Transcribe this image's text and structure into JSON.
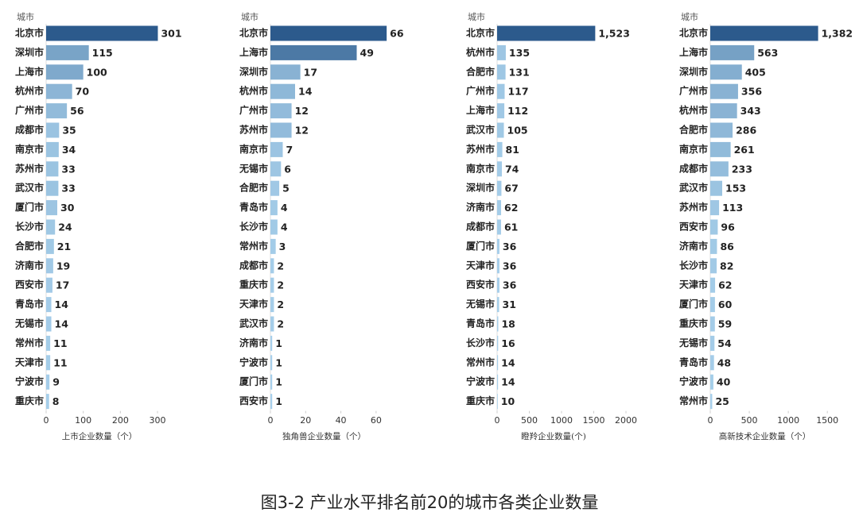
{
  "caption": "图3-2 产业水平排名前20的城市各类企业数量",
  "chart_data": [
    {
      "type": "hbar",
      "y_label": "城市",
      "x_label": "上市企业数量（个）",
      "categories": [
        "北京市",
        "深圳市",
        "上海市",
        "杭州市",
        "广州市",
        "成都市",
        "南京市",
        "苏州市",
        "武汉市",
        "厦门市",
        "长沙市",
        "合肥市",
        "济南市",
        "西安市",
        "青岛市",
        "无锡市",
        "常州市",
        "天津市",
        "宁波市",
        "重庆市"
      ],
      "values": [
        301,
        115,
        100,
        70,
        56,
        35,
        34,
        33,
        33,
        30,
        24,
        21,
        19,
        17,
        14,
        14,
        11,
        11,
        9,
        8
      ],
      "xlim": [
        0,
        330
      ],
      "xticks": [
        0,
        100,
        200,
        300
      ],
      "color_range": [
        "#a9d1ec",
        "#2c5a8c"
      ]
    },
    {
      "type": "hbar",
      "y_label": "城市",
      "x_label": "独角兽企业数量（个）",
      "categories": [
        "北京市",
        "上海市",
        "深圳市",
        "杭州市",
        "广州市",
        "苏州市",
        "南京市",
        "无锡市",
        "合肥市",
        "青岛市",
        "长沙市",
        "常州市",
        "成都市",
        "重庆市",
        "天津市",
        "武汉市",
        "济南市",
        "宁波市",
        "厦门市",
        "西安市"
      ],
      "values": [
        66,
        49,
        17,
        14,
        12,
        12,
        7,
        6,
        5,
        4,
        4,
        3,
        2,
        2,
        2,
        2,
        1,
        1,
        1,
        1
      ],
      "xlim": [
        0,
        70
      ],
      "xticks": [
        0,
        20,
        40,
        60
      ],
      "color_range": [
        "#a9d1ec",
        "#2c5a8c"
      ]
    },
    {
      "type": "hbar",
      "y_label": "城市",
      "x_label": "瞪羚企业数量(个)",
      "categories": [
        "北京市",
        "杭州市",
        "合肥市",
        "广州市",
        "上海市",
        "武汉市",
        "苏州市",
        "南京市",
        "深圳市",
        "济南市",
        "成都市",
        "厦门市",
        "天津市",
        "西安市",
        "无锡市",
        "青岛市",
        "长沙市",
        "常州市",
        "宁波市",
        "重庆市"
      ],
      "values": [
        1523,
        135,
        131,
        117,
        112,
        105,
        81,
        74,
        67,
        62,
        61,
        36,
        36,
        36,
        31,
        18,
        16,
        14,
        14,
        10
      ],
      "value_labels": [
        "1,523",
        "135",
        "131",
        "117",
        "112",
        "105",
        "81",
        "74",
        "67",
        "62",
        "61",
        "36",
        "36",
        "36",
        "31",
        "18",
        "16",
        "14",
        "14",
        "10"
      ],
      "xlim": [
        0,
        2000
      ],
      "xticks": [
        0,
        500,
        1000,
        1500,
        2000
      ],
      "color_range": [
        "#a9d1ec",
        "#2c5a8c"
      ]
    },
    {
      "type": "hbar",
      "y_label": "城市",
      "x_label": "高新技术企业数量（个）",
      "categories": [
        "北京市",
        "上海市",
        "深圳市",
        "广州市",
        "杭州市",
        "合肥市",
        "南京市",
        "成都市",
        "武汉市",
        "苏州市",
        "西安市",
        "济南市",
        "长沙市",
        "天津市",
        "厦门市",
        "重庆市",
        "无锡市",
        "青岛市",
        "宁波市",
        "常州市"
      ],
      "values": [
        1382,
        563,
        405,
        356,
        343,
        286,
        261,
        233,
        153,
        113,
        96,
        86,
        82,
        62,
        60,
        59,
        54,
        48,
        40,
        25
      ],
      "value_labels": [
        "1,382",
        "563",
        "405",
        "356",
        "343",
        "286",
        "261",
        "233",
        "153",
        "113",
        "96",
        "86",
        "82",
        "62",
        "60",
        "59",
        "54",
        "48",
        "40",
        "25"
      ],
      "xlim": [
        0,
        1600
      ],
      "xticks": [
        0,
        500,
        1000,
        1500
      ],
      "color_range": [
        "#a9d1ec",
        "#2c5a8c"
      ]
    }
  ]
}
